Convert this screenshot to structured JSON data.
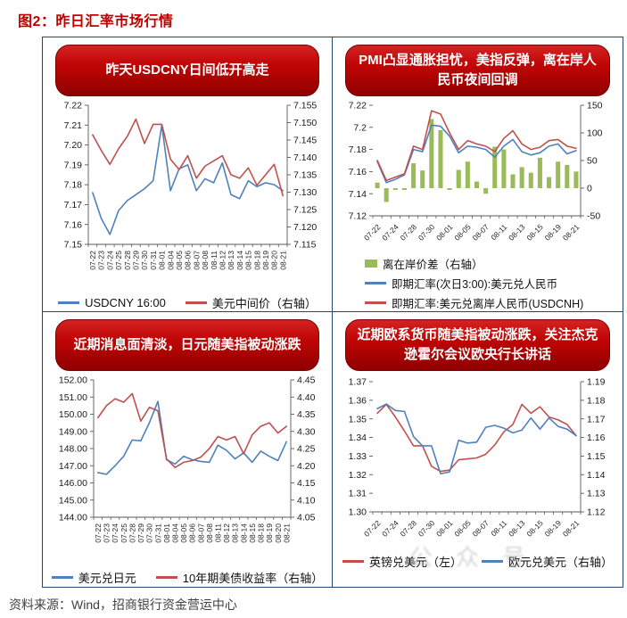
{
  "page": {
    "title": "图2：昨日汇率市场行情",
    "source_note": "资料来源：Wind，招商银行资金营运中心",
    "watermark": "公众号"
  },
  "colors": {
    "line_blue": "#4f81bd",
    "line_red": "#c0504d",
    "bar_green": "#9bbb59",
    "banner_red": "#c00000",
    "title_red": "#c00000",
    "border_navy": "#24476b",
    "axis_gray": "#595959",
    "tick_text": "#1a1a1a"
  },
  "categories": [
    "07-22",
    "07-23",
    "07-24",
    "07-25",
    "07-28",
    "07-29",
    "07-30",
    "07-31",
    "08-01",
    "08-04",
    "08-05",
    "08-06",
    "08-07",
    "08-08",
    "08-11",
    "08-12",
    "08-13",
    "08-14",
    "08-15",
    "08-18",
    "08-19",
    "08-20",
    "08-21"
  ],
  "chart_data": [
    {
      "id": "usdcny-intraday",
      "type": "line",
      "title": "昨天USDCNY日间低开高走",
      "x_tick_every": 1,
      "left_axis": {
        "min": 7.15,
        "max": 7.22,
        "ticks": [
          "7.22",
          "7.21",
          "7.20",
          "7.19",
          "7.18",
          "7.17",
          "7.16",
          "7.15"
        ]
      },
      "right_axis": {
        "min": 7.115,
        "max": 7.155,
        "ticks": [
          "7.155",
          "7.150",
          "7.145",
          "7.140",
          "7.135",
          "7.130",
          "7.125",
          "7.120",
          "7.115"
        ]
      },
      "series": [
        {
          "name": "USDCNY 16:00",
          "type": "line",
          "axis": "left",
          "color_key": "line_blue",
          "values": [
            7.176,
            7.163,
            7.155,
            7.167,
            7.172,
            7.175,
            7.178,
            7.182,
            7.21,
            7.177,
            7.188,
            7.19,
            7.177,
            7.183,
            7.181,
            7.191,
            7.175,
            7.173,
            7.182,
            7.179,
            7.181,
            7.18,
            7.177
          ]
        },
        {
          "name": "美元中间价（右轴）",
          "type": "line",
          "axis": "right",
          "color_key": "line_red",
          "values": [
            7.1465,
            7.142,
            7.138,
            7.1425,
            7.146,
            7.151,
            7.144,
            7.1495,
            7.1495,
            7.1395,
            7.1365,
            7.1405,
            7.134,
            7.1375,
            7.139,
            7.1405,
            7.135,
            7.134,
            7.137,
            7.132,
            7.135,
            7.138,
            7.129
          ]
        }
      ]
    },
    {
      "id": "pmi-cny-rebound",
      "type": "mixed",
      "title": "PMI凸显通胀担忧，美指反弹，离在岸人民币夜间回调",
      "x_tick_every": 2,
      "left_axis": {
        "min": 7.12,
        "max": 7.22,
        "ticks": [
          "7.22",
          "7.2",
          "7.18",
          "7.16",
          "7.14",
          "7.12"
        ]
      },
      "right_axis": {
        "min": -50,
        "max": 150,
        "ticks": [
          "150",
          "100",
          "50",
          "0",
          "-50"
        ]
      },
      "series": [
        {
          "name": "离在岸价差（右轴）",
          "type": "bar",
          "axis": "right",
          "color_key": "bar_green",
          "values": [
            10,
            -25,
            -3,
            -3,
            45,
            32,
            125,
            105,
            -3,
            33,
            48,
            12,
            -10,
            75,
            70,
            25,
            38,
            28,
            55,
            20,
            48,
            42,
            30
          ]
        },
        {
          "name": "即期汇率(次日3:00):美元兑人民币",
          "type": "line",
          "axis": "left",
          "color_key": "line_blue",
          "values": [
            7.169,
            7.15,
            7.153,
            7.157,
            7.18,
            7.178,
            7.202,
            7.201,
            7.192,
            7.177,
            7.183,
            7.182,
            7.18,
            7.173,
            7.183,
            7.189,
            7.178,
            7.175,
            7.177,
            7.183,
            7.185,
            7.176,
            7.179
          ]
        },
        {
          "name": "即期汇率:美元兑离岸人民币(USDCNH)",
          "type": "line",
          "axis": "left",
          "color_key": "line_red",
          "values": [
            7.17,
            7.152,
            7.155,
            7.158,
            7.183,
            7.18,
            7.215,
            7.212,
            7.195,
            7.18,
            7.188,
            7.185,
            7.183,
            7.178,
            7.19,
            7.197,
            7.185,
            7.18,
            7.182,
            7.188,
            7.189,
            7.183,
            7.181
          ]
        }
      ]
    },
    {
      "id": "jpy-passive",
      "type": "line",
      "title": "近期消息面清淡，日元随美指被动涨跌",
      "x_tick_every": 1,
      "left_axis": {
        "min": 144.0,
        "max": 152.0,
        "ticks": [
          "152.00",
          "151.00",
          "150.00",
          "149.00",
          "148.00",
          "147.00",
          "146.00",
          "145.00",
          "144.00"
        ]
      },
      "right_axis": {
        "min": 4.05,
        "max": 4.45,
        "ticks": [
          "4.45",
          "4.40",
          "4.35",
          "4.30",
          "4.25",
          "4.20",
          "4.15",
          "4.10",
          "4.05"
        ]
      },
      "series": [
        {
          "name": "美元兑日元",
          "type": "line",
          "axis": "left",
          "color_key": "line_blue",
          "values": [
            146.6,
            146.5,
            147.0,
            147.55,
            148.5,
            148.45,
            149.5,
            150.75,
            147.35,
            147.1,
            147.55,
            147.35,
            147.25,
            147.2,
            148.2,
            147.9,
            147.4,
            147.75,
            147.2,
            147.85,
            147.55,
            147.3,
            148.4
          ]
        },
        {
          "name": "10年期美债收益率（右轴）",
          "type": "line",
          "axis": "right",
          "color_key": "line_red",
          "values": [
            4.34,
            4.375,
            4.395,
            4.385,
            4.41,
            4.33,
            4.37,
            4.36,
            4.22,
            4.195,
            4.21,
            4.215,
            4.225,
            4.25,
            4.285,
            4.275,
            4.285,
            4.235,
            4.29,
            4.315,
            4.325,
            4.295,
            4.315
          ]
        }
      ]
    },
    {
      "id": "eur-gbp-passive",
      "type": "line",
      "title": "近期欧系货币随美指被动涨跌，关注杰克逊霍尔会议欧央行长讲话",
      "x_tick_every": 2,
      "left_axis": {
        "min": 1.3,
        "max": 1.37,
        "ticks": [
          "1.37",
          "1.36",
          "1.35",
          "1.34",
          "1.33",
          "1.32",
          "1.31",
          "1.30"
        ]
      },
      "right_axis": {
        "min": 1.12,
        "max": 1.19,
        "ticks": [
          "1.19",
          "1.18",
          "1.17",
          "1.16",
          "1.15",
          "1.14",
          "1.13",
          "1.12"
        ]
      },
      "series": [
        {
          "name": "英镑兑美元（左）",
          "type": "line",
          "axis": "left",
          "color_key": "line_red",
          "values": [
            1.353,
            1.3578,
            1.351,
            1.3435,
            1.3355,
            1.3355,
            1.3245,
            1.3218,
            1.3225,
            1.328,
            1.3285,
            1.329,
            1.331,
            1.336,
            1.343,
            1.347,
            1.3578,
            1.353,
            1.3565,
            1.351,
            1.3495,
            1.347,
            1.341
          ]
        },
        {
          "name": "欧元兑美元（右轴）",
          "type": "line",
          "axis": "right",
          "color_key": "line_blue",
          "values": [
            1.1755,
            1.178,
            1.1745,
            1.174,
            1.1605,
            1.1555,
            1.1555,
            1.1405,
            1.1415,
            1.1585,
            1.157,
            1.1575,
            1.1655,
            1.1665,
            1.165,
            1.1625,
            1.164,
            1.1705,
            1.1645,
            1.1705,
            1.166,
            1.1645,
            1.161
          ]
        }
      ]
    }
  ]
}
